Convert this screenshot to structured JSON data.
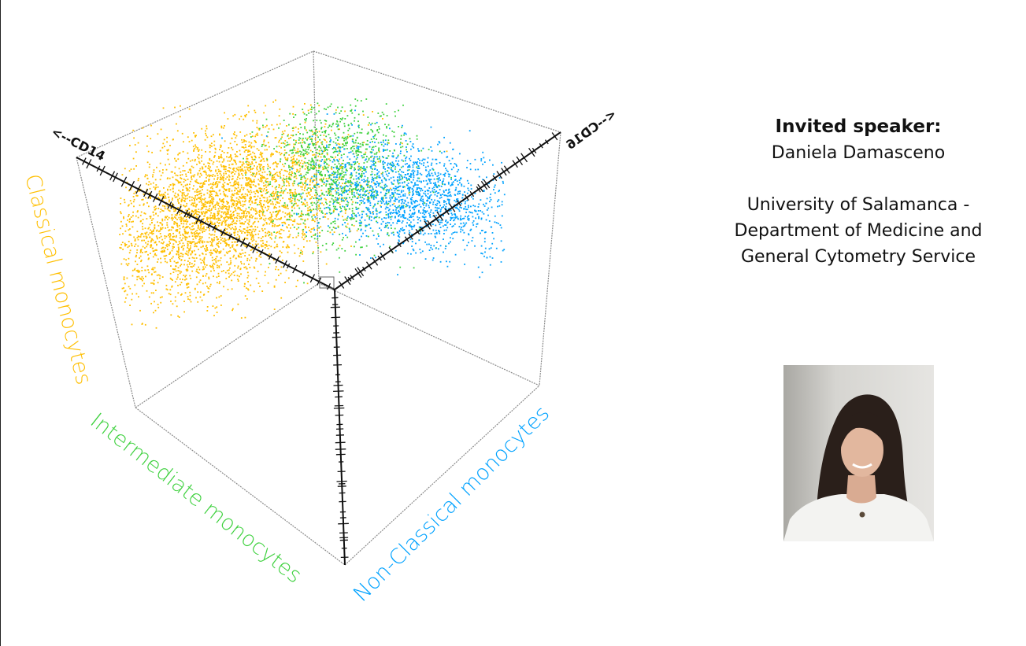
{
  "figure": {
    "axis_labels": {
      "cd14": "<--CD14",
      "cd16": "<--CD16"
    },
    "populations": [
      {
        "label": "Classical monocytes",
        "color": "#ffbf00"
      },
      {
        "label": "Intermediate monocytes",
        "color": "#3fd13f"
      },
      {
        "label": "Non-Classical monocytes",
        "color": "#00a2ff"
      }
    ]
  },
  "speaker": {
    "heading": "Invited speaker:",
    "name": "Daniela Damasceno",
    "affiliation_lines": [
      "University of Salamanca -",
      "Department of Medicine and",
      "General Cytometry Service"
    ]
  }
}
